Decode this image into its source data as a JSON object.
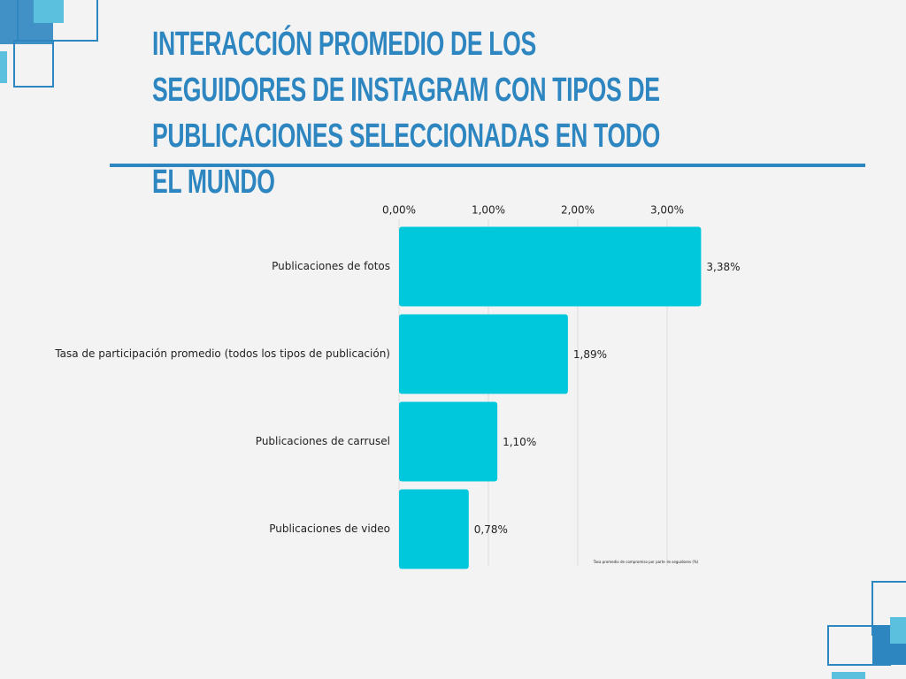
{
  "chart_data": {
    "type": "bar",
    "orientation": "horizontal",
    "title": "INTERACCIÓN PROMEDIO DE LOS SEGUIDORES DE INSTAGRAM CON TIPOS DE PUBLICACIONES SELECCIONADAS EN TODO EL MUNDO",
    "x_label": "Tasa promedio de compromiso por parte de seguidores (%)",
    "categories": [
      "Publicaciones de fotos",
      "Tasa de participación promedio (todos los tipos de publicación)",
      "Publicaciones de carrusel",
      "Publicaciones de video"
    ],
    "values": [
      3.38,
      1.89,
      1.1,
      0.78
    ],
    "value_labels": [
      "3,38%",
      "1,89%",
      "1,10%",
      "0,78%"
    ],
    "color": "#00c8dc",
    "xlim": [
      0,
      3.4
    ],
    "xticks": [
      {
        "value": 0,
        "label": "0,00%"
      },
      {
        "value": 1,
        "label": "1,00%"
      },
      {
        "value": 2,
        "label": "2,00%"
      },
      {
        "value": 3,
        "label": "3,00%"
      }
    ],
    "grid": true
  }
}
